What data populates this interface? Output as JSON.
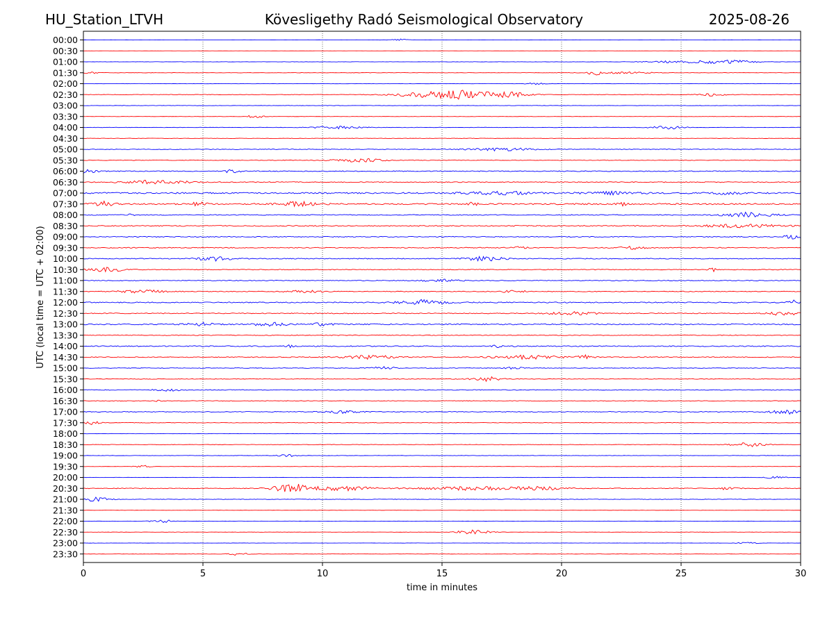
{
  "header": {
    "station": "HU_Station_LTVH",
    "observatory": "Kövesligethy Radó Seismological Observatory",
    "date": "2025-08-26"
  },
  "chart_data": {
    "type": "line",
    "title": "Kövesligethy Radó Seismological Observatory",
    "xlabel": "time in minutes",
    "ylabel": "UTC (local time = UTC + 02:00)",
    "xlim": [
      0,
      30
    ],
    "xticks": [
      0,
      5,
      10,
      15,
      20,
      25,
      30
    ],
    "grid": "vertical dotted lines at x ticks",
    "colors": {
      "even_hour": "#0000ff",
      "half_hour": "#ff0000"
    },
    "traces": [
      {
        "label": "00:00",
        "noise": 0.12,
        "bursts": [
          [
            13.2,
            0.5,
            1.5
          ]
        ]
      },
      {
        "label": "00:30",
        "noise": 0.1,
        "bursts": []
      },
      {
        "label": "01:00",
        "noise": 0.2,
        "bursts": [
          [
            25.0,
            2.0,
            1.5
          ],
          [
            27.0,
            1.5,
            2.5
          ]
        ]
      },
      {
        "label": "01:30",
        "noise": 0.25,
        "bursts": [
          [
            0.3,
            0.5,
            1.5
          ],
          [
            21.4,
            0.3,
            4.5
          ],
          [
            22.5,
            2.0,
            1.2
          ]
        ]
      },
      {
        "label": "02:00",
        "noise": 0.2,
        "bursts": [
          [
            18.9,
            0.5,
            2
          ]
        ]
      },
      {
        "label": "02:30",
        "noise": 0.35,
        "bursts": [
          [
            14.5,
            2.0,
            4
          ],
          [
            16.0,
            1.5,
            5
          ],
          [
            17.8,
            1.2,
            4
          ],
          [
            26.3,
            0.8,
            2
          ]
        ]
      },
      {
        "label": "03:00",
        "noise": 0.25,
        "bursts": []
      },
      {
        "label": "03:30",
        "noise": 0.2,
        "bursts": [
          [
            7.2,
            0.6,
            2
          ]
        ]
      },
      {
        "label": "04:00",
        "noise": 0.3,
        "bursts": [
          [
            10.5,
            1.5,
            2
          ],
          [
            24.5,
            1.0,
            2.5
          ]
        ]
      },
      {
        "label": "04:30",
        "noise": 0.3,
        "bursts": []
      },
      {
        "label": "05:00",
        "noise": 0.45,
        "bursts": [
          [
            17.5,
            2.0,
            2
          ]
        ]
      },
      {
        "label": "05:30",
        "noise": 0.4,
        "bursts": [
          [
            11.5,
            1.5,
            2.5
          ]
        ]
      },
      {
        "label": "06:00",
        "noise": 0.6,
        "bursts": [
          [
            0.2,
            0.6,
            3
          ],
          [
            6.2,
            0.5,
            2
          ]
        ]
      },
      {
        "label": "06:30",
        "noise": 0.6,
        "bursts": [
          [
            3.0,
            2.0,
            2.5
          ]
        ]
      },
      {
        "label": "07:00",
        "noise": 1.0,
        "bursts": [
          [
            17.5,
            2.0,
            2
          ],
          [
            22.0,
            1.5,
            1.8
          ],
          [
            27.0,
            1.0,
            1.8
          ]
        ]
      },
      {
        "label": "07:30",
        "noise": 1.0,
        "bursts": [
          [
            0.8,
            0.6,
            3.5
          ],
          [
            4.8,
            0.5,
            2.5
          ],
          [
            9.0,
            1.0,
            3
          ],
          [
            16.3,
            0.3,
            2.5
          ],
          [
            22.5,
            0.3,
            2
          ]
        ]
      },
      {
        "label": "08:00",
        "noise": 0.6,
        "bursts": [
          [
            2.0,
            0.2,
            2.5
          ],
          [
            27.8,
            1.5,
            3.5
          ]
        ]
      },
      {
        "label": "08:30",
        "noise": 0.7,
        "bursts": [
          [
            27.5,
            2.5,
            2
          ]
        ]
      },
      {
        "label": "09:00",
        "noise": 0.6,
        "bursts": [
          [
            29.6,
            0.5,
            3
          ]
        ]
      },
      {
        "label": "09:30",
        "noise": 0.6,
        "bursts": [
          [
            18.3,
            0.5,
            2
          ],
          [
            23.0,
            0.8,
            2
          ]
        ]
      },
      {
        "label": "10:00",
        "noise": 0.6,
        "bursts": [
          [
            5.5,
            1.0,
            3
          ],
          [
            16.8,
            1.2,
            3
          ]
        ]
      },
      {
        "label": "10:30",
        "noise": 0.5,
        "bursts": [
          [
            1.0,
            1.0,
            3
          ],
          [
            26.3,
            0.2,
            3.5
          ]
        ]
      },
      {
        "label": "11:00",
        "noise": 0.5,
        "bursts": [
          [
            15.0,
            1.0,
            2.5
          ]
        ]
      },
      {
        "label": "11:30",
        "noise": 0.5,
        "bursts": [
          [
            2.5,
            1.5,
            2
          ],
          [
            9.3,
            1.0,
            2
          ],
          [
            18.0,
            0.8,
            1.8
          ]
        ]
      },
      {
        "label": "12:00",
        "noise": 0.7,
        "bursts": [
          [
            14.2,
            1.5,
            3.5
          ],
          [
            29.7,
            0.3,
            3
          ]
        ]
      },
      {
        "label": "12:30",
        "noise": 0.6,
        "bursts": [
          [
            20.5,
            1.5,
            2
          ],
          [
            29.3,
            0.8,
            3
          ]
        ]
      },
      {
        "label": "13:00",
        "noise": 0.8,
        "bursts": [
          [
            4.8,
            0.8,
            2.5
          ],
          [
            7.8,
            1.0,
            2.5
          ],
          [
            10.0,
            0.5,
            2.5
          ]
        ]
      },
      {
        "label": "13:30",
        "noise": 0.5,
        "bursts": []
      },
      {
        "label": "14:00",
        "noise": 0.7,
        "bursts": [
          [
            8.6,
            0.2,
            3
          ],
          [
            17.5,
            0.5,
            2
          ]
        ]
      },
      {
        "label": "14:30",
        "noise": 0.6,
        "bursts": [
          [
            12.0,
            1.5,
            2.5
          ],
          [
            18.5,
            2.0,
            2.5
          ],
          [
            21.0,
            0.5,
            2.5
          ]
        ]
      },
      {
        "label": "15:00",
        "noise": 0.4,
        "bursts": [
          [
            12.5,
            0.8,
            2
          ],
          [
            18.0,
            0.5,
            1.8
          ]
        ]
      },
      {
        "label": "15:30",
        "noise": 0.4,
        "bursts": [
          [
            16.9,
            1.0,
            3.5
          ]
        ]
      },
      {
        "label": "16:00",
        "noise": 0.5,
        "bursts": [
          [
            3.5,
            0.8,
            2
          ]
        ]
      },
      {
        "label": "16:30",
        "noise": 0.4,
        "bursts": [
          [
            3.0,
            0.3,
            2
          ]
        ]
      },
      {
        "label": "17:00",
        "noise": 0.5,
        "bursts": [
          [
            10.8,
            1.0,
            2
          ],
          [
            29.3,
            0.8,
            3.5
          ]
        ]
      },
      {
        "label": "17:30",
        "noise": 0.35,
        "bursts": [
          [
            0.3,
            0.5,
            2.5
          ]
        ]
      },
      {
        "label": "18:00",
        "noise": 0.2,
        "bursts": []
      },
      {
        "label": "18:30",
        "noise": 0.3,
        "bursts": [
          [
            27.8,
            1.0,
            3
          ]
        ]
      },
      {
        "label": "19:00",
        "noise": 0.25,
        "bursts": [
          [
            8.5,
            0.5,
            2
          ]
        ]
      },
      {
        "label": "19:30",
        "noise": 0.2,
        "bursts": [
          [
            2.5,
            0.5,
            1.5
          ]
        ]
      },
      {
        "label": "20:00",
        "noise": 0.2,
        "bursts": [
          [
            29.0,
            0.8,
            1.5
          ]
        ]
      },
      {
        "label": "20:30",
        "noise": 0.5,
        "bursts": [
          [
            8.8,
            1.2,
            6
          ],
          [
            11.0,
            1.5,
            3
          ],
          [
            16.0,
            3.0,
            2.5
          ],
          [
            19.0,
            1.5,
            2.5
          ],
          [
            27.0,
            0.5,
            2.5
          ]
        ]
      },
      {
        "label": "21:00",
        "noise": 0.35,
        "bursts": [
          [
            0.5,
            0.8,
            3
          ]
        ]
      },
      {
        "label": "21:30",
        "noise": 0.15,
        "bursts": []
      },
      {
        "label": "22:00",
        "noise": 0.2,
        "bursts": [
          [
            3.3,
            0.6,
            2.5
          ]
        ]
      },
      {
        "label": "22:30",
        "noise": 0.2,
        "bursts": [
          [
            16.3,
            1.0,
            3
          ]
        ]
      },
      {
        "label": "23:00",
        "noise": 0.15,
        "bursts": [
          [
            27.8,
            0.6,
            1.5
          ]
        ]
      },
      {
        "label": "23:30",
        "noise": 0.2,
        "bursts": [
          [
            6.5,
            0.6,
            2
          ]
        ]
      }
    ]
  }
}
